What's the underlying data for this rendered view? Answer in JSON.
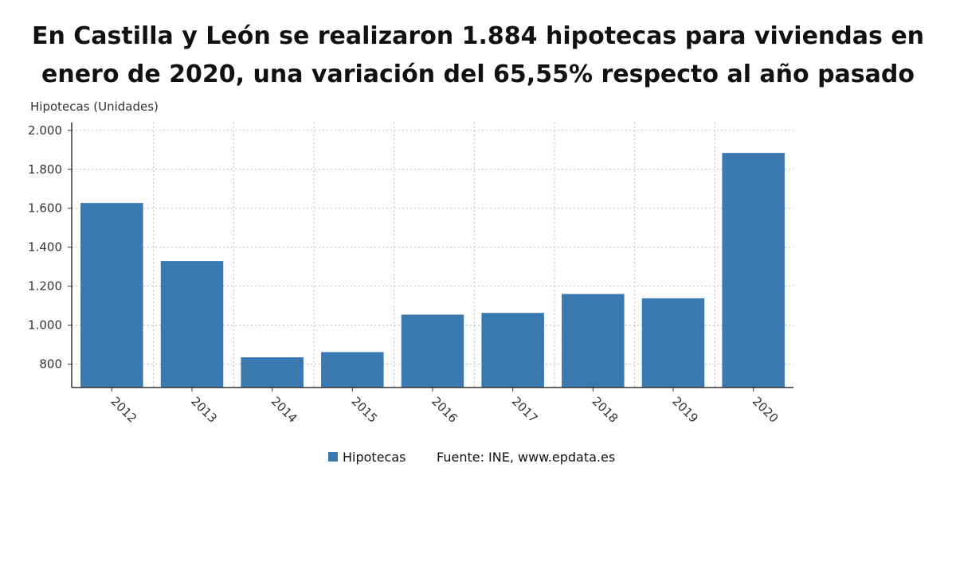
{
  "title_line1": "En Castilla y León se realizaron 1.884 hipotecas para viviendas en",
  "title_line2": "enero de 2020, una variación del 65,55% respecto al año pasado",
  "source": "Fuente: INE, www.epdata.es",
  "chart_data": {
    "type": "bar",
    "title": "En Castilla y León se realizaron 1.884 hipotecas para viviendas en enero de 2020, una variación del 65,55% respecto al año pasado",
    "xlabel": "",
    "ylabel": "Hipotecas (Unidades)",
    "categories": [
      "2012",
      "2013",
      "2014",
      "2015",
      "2016",
      "2017",
      "2018",
      "2019",
      "2020"
    ],
    "series": [
      {
        "name": "Hipotecas",
        "values": [
          1627,
          1329,
          835,
          862,
          1054,
          1063,
          1160,
          1138,
          1884
        ],
        "color": "#3a78b0"
      }
    ],
    "ylim": [
      680,
      2040
    ],
    "yticks": [
      800,
      1000,
      1200,
      1400,
      1600,
      1800,
      2000
    ],
    "ytick_labels": [
      "800",
      "1.000",
      "1.200",
      "1.400",
      "1.600",
      "1.800",
      "2.000"
    ],
    "grid": true,
    "legend_position": "bottom"
  }
}
